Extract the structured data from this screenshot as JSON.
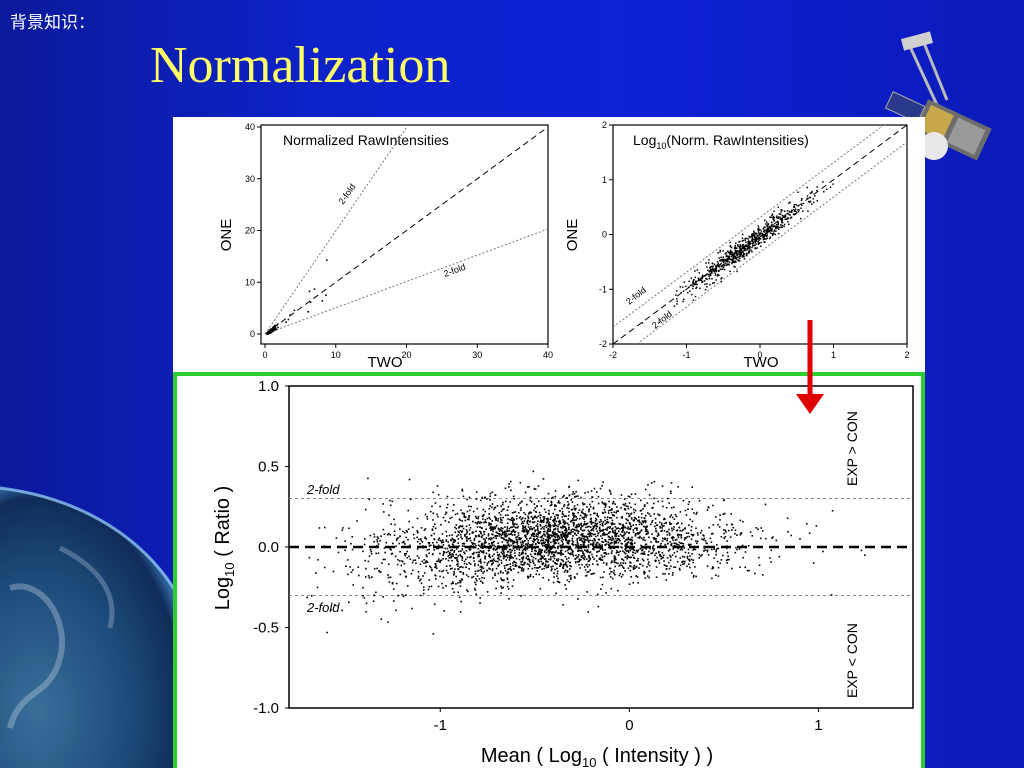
{
  "slide": {
    "section_label": "背景知识：",
    "title": "Normalization"
  },
  "chart_data": [
    {
      "type": "scatter",
      "title": "Normalized RawIntensities",
      "xlabel": "TWO",
      "ylabel": "ONE",
      "xlim": [
        0,
        40
      ],
      "ylim": [
        0,
        40
      ],
      "xticks": [
        "0",
        "10",
        "20",
        "30",
        "40"
      ],
      "yticks": [
        "0",
        "10",
        "20",
        "30",
        "40"
      ],
      "reference_lines": [
        {
          "label": "",
          "slope": 1,
          "style": "dashed"
        },
        {
          "label": "2-fold",
          "slope": 2,
          "style": "dotted"
        },
        {
          "label": "2-fold",
          "slope": 0.5,
          "style": "dotted"
        }
      ],
      "grid": false
    },
    {
      "type": "scatter",
      "title_prefix": "Log",
      "title_sub": "10",
      "title_suffix": "(Norm. RawIntensities)",
      "xlabel": "TWO",
      "ylabel": "ONE",
      "xlim": [
        -2,
        2
      ],
      "ylim": [
        -2,
        2
      ],
      "xticks": [
        "-2",
        "-1",
        "0",
        "1",
        "2"
      ],
      "yticks": [
        "-2",
        "-1",
        "0",
        "1",
        "2"
      ],
      "reference_lines": [
        {
          "label": "",
          "offset": 0,
          "style": "dashed"
        },
        {
          "label": "2-fold",
          "offset": 0.301,
          "style": "dotted"
        },
        {
          "label": "2-fold",
          "offset": -0.301,
          "style": "dotted"
        }
      ],
      "grid": false
    },
    {
      "type": "scatter",
      "xlabel_prefix": "Mean ( Log",
      "xlabel_sub": "10",
      "xlabel_suffix": " ( Intensity ) )",
      "ylabel_prefix": "Log",
      "ylabel_sub": "10",
      "ylabel_suffix": " ( Ratio )",
      "xlim": [
        -1.8,
        1.5
      ],
      "ylim": [
        -1.0,
        1.0
      ],
      "xticks": [
        "-1",
        "0",
        "1"
      ],
      "xtick_values": [
        -1,
        0,
        1
      ],
      "yticks": [
        "1.0",
        "0.5",
        "0.0",
        "-0.5",
        "-1.0"
      ],
      "ytick_values": [
        1.0,
        0.5,
        0.0,
        -0.5,
        -1.0
      ],
      "reference_lines": [
        {
          "label": "",
          "y": 0,
          "style": "dashed"
        },
        {
          "label": "2-fold",
          "y": 0.301,
          "style": "dotted"
        },
        {
          "label": "2-fold",
          "y": -0.301,
          "style": "dotted"
        }
      ],
      "region_labels": [
        "EXP > CON",
        "EXP < CON"
      ],
      "grid": false
    }
  ],
  "colors": {
    "background": "#0d22c8",
    "title": "#ffff66",
    "highlight_border": "#2ecc2e",
    "arrow": "#e00000"
  },
  "icons": [
    "satellite-icon",
    "earth-image",
    "down-arrow-icon"
  ]
}
